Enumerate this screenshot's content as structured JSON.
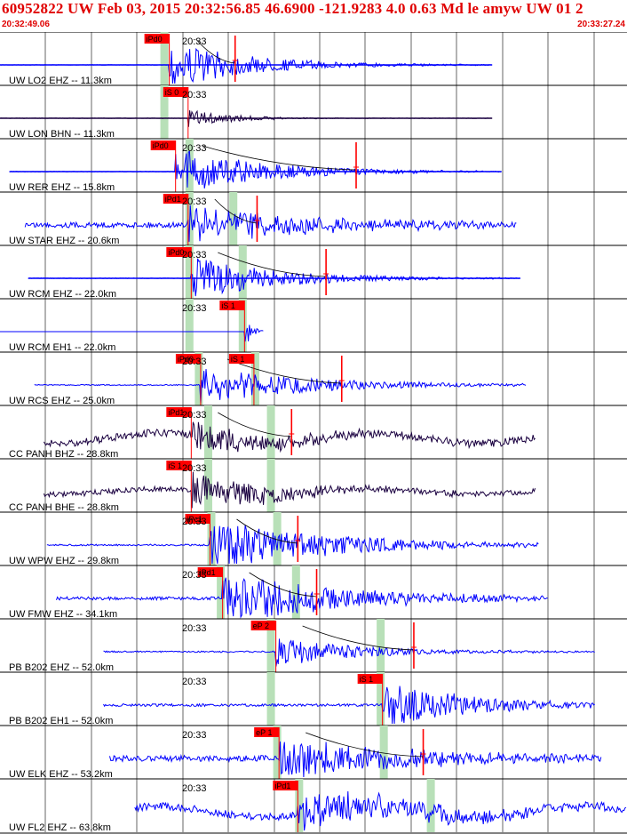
{
  "header": {
    "title": "60952822 UW Feb 03, 2015 20:32:56.85    46.6900 -121.9283  4.0 0.63 Md le amyw UW 01    2",
    "start_time": "20:32:49.06",
    "end_time": "20:33:27.24"
  },
  "colors": {
    "trace_blue": "#0000ff",
    "trace_dark": "#1a0040",
    "pick_red": "#ff0000",
    "green_marker": "#b8e0b8",
    "frame": "#000000"
  },
  "chart_data": {
    "type": "line",
    "title": "",
    "xlabel": "",
    "ylabel": "",
    "time_tick_label": "20:33",
    "grid": true,
    "traces": [
      {
        "label": "UW LO2 EHZ -- 11.3km",
        "pick": "iPd0",
        "pick2": "",
        "color": "blue",
        "tone": "flat",
        "start": 0.0,
        "end": 0.785,
        "arrival": 0.27,
        "amp": 0.9,
        "noise": 0.02,
        "tail": 0.37,
        "greens": [
          0.26
        ],
        "redLine": 0.375
      },
      {
        "label": "UW LON BHN -- 11.3km",
        "pick": "iS 0",
        "pick2": "",
        "color": "dark",
        "tone": "flat",
        "start": 0.0,
        "end": 0.785,
        "arrival": 0.3,
        "amp": 0.35,
        "noise": 0.02,
        "tail": 0.2,
        "greens": [
          0.26
        ],
        "redLine": null
      },
      {
        "label": "UW RER EHZ -- 15.8km",
        "pick": "iPd0",
        "pick2": "",
        "color": "blue",
        "tone": "flat",
        "start": 0.015,
        "end": 0.8,
        "arrival": 0.28,
        "amp": 0.9,
        "noise": 0.03,
        "tail": 0.4,
        "greens": [
          0.3
        ],
        "redLine": 0.568
      },
      {
        "label": "UW STAR EHZ -- 20.6km",
        "pick": "iPd1",
        "pick2": "",
        "color": "blue",
        "tone": "flat",
        "start": 0.04,
        "end": 0.825,
        "arrival": 0.3,
        "amp": 0.7,
        "noise": 0.25,
        "tail": 0.6,
        "greens": [
          0.3,
          0.37
        ],
        "redLine": 0.41
      },
      {
        "label": "UW RCM EHZ -- 22.0km",
        "pick": "iPd0",
        "pick2": "",
        "color": "blue",
        "tone": "flat",
        "start": 0.045,
        "end": 0.83,
        "arrival": 0.305,
        "amp": 0.8,
        "noise": 0.03,
        "tail": 0.4,
        "greens": [
          0.3,
          0.385
        ],
        "redLine": 0.52
      },
      {
        "label": "UW RCM EH1 -- 22.0km",
        "pick": "iS 1",
        "pick2": "",
        "color": "blue",
        "tone": "flat",
        "start": 0.0,
        "end": 0.0,
        "arrival": 0.39,
        "amp": 0.6,
        "noise": 0.0,
        "tail": 0.03,
        "greens": [
          0.3,
          0.385
        ],
        "redLine": null
      },
      {
        "label": "UW RCS EHZ -- 25.0km",
        "pick": "iPd0",
        "pick2": "iS 1",
        "color": "blue",
        "tone": "flat",
        "start": 0.055,
        "end": 0.84,
        "arrival": 0.32,
        "amp": 0.7,
        "noise": 0.05,
        "tail": 0.5,
        "greens": [
          0.315,
          0.405
        ],
        "redLine": 0.545
      },
      {
        "label": "CC PANH BHZ -- 28.8km",
        "pick": "iPd1",
        "pick2": "",
        "color": "dark",
        "tone": "long",
        "start": 0.07,
        "end": 0.855,
        "arrival": 0.305,
        "amp": 0.55,
        "noise": 0.35,
        "tail": 0.4,
        "greens": [
          0.33,
          0.43
        ],
        "redLine": 0.465
      },
      {
        "label": "CC PANH BHE -- 28.8km",
        "pick": "iS 1",
        "pick2": "",
        "color": "dark",
        "tone": "long",
        "start": 0.07,
        "end": 0.855,
        "arrival": 0.305,
        "amp": 0.75,
        "noise": 0.25,
        "tail": 0.4,
        "greens": [
          0.33,
          0.43
        ],
        "redLine": null
      },
      {
        "label": "UW WPW EHZ -- 29.8km",
        "pick": "iPc1",
        "pick2": "",
        "color": "blue",
        "tone": "flat",
        "start": 0.075,
        "end": 0.86,
        "arrival": 0.335,
        "amp": 1.0,
        "noise": 0.08,
        "tail": 0.55,
        "greens": [
          0.335,
          0.44
        ],
        "redLine": 0.475
      },
      {
        "label": "UW FMW EHZ -- 34.1km",
        "pick": "iPd1",
        "pick2": "",
        "color": "blue",
        "tone": "flat",
        "start": 0.09,
        "end": 0.875,
        "arrival": 0.355,
        "amp": 1.0,
        "noise": 0.15,
        "tail": 0.55,
        "greens": [
          0.35,
          0.47
        ],
        "redLine": 0.505
      },
      {
        "label": "PB B202 EHZ -- 52.0km",
        "pick": "eP 2",
        "pick2": "",
        "color": "blue",
        "tone": "flat",
        "start": 0.165,
        "end": 0.95,
        "arrival": 0.44,
        "amp": 0.55,
        "noise": 0.07,
        "tail": 0.4,
        "greens": [
          0.43,
          0.605
        ],
        "redLine": 0.66
      },
      {
        "label": "PB B202 EH1 -- 52.0km",
        "pick": "iS 1",
        "pick2": "",
        "color": "blue",
        "tone": "flat",
        "start": 0.165,
        "end": 0.95,
        "arrival": 0.61,
        "amp": 0.9,
        "noise": 0.12,
        "tail": 0.4,
        "greens": [
          0.43,
          0.605
        ],
        "redLine": null
      },
      {
        "label": "UW ELK EHZ -- 53.2km",
        "pick": "eP 1",
        "pick2": "",
        "color": "blue",
        "tone": "flat",
        "start": 0.175,
        "end": 0.96,
        "arrival": 0.445,
        "amp": 0.8,
        "noise": 0.28,
        "tail": 0.6,
        "greens": [
          0.44,
          0.61
        ],
        "redLine": 0.675
      },
      {
        "label": "UW FL2 EHZ -- 63.8km",
        "pick": "iPd1",
        "pick2": "",
        "color": "blue",
        "tone": "long",
        "start": 0.215,
        "end": 1.0,
        "arrival": 0.475,
        "amp": 0.8,
        "noise": 0.35,
        "tail": 0.6,
        "greens": [
          0.475,
          0.685
        ],
        "redLine": null
      }
    ]
  }
}
